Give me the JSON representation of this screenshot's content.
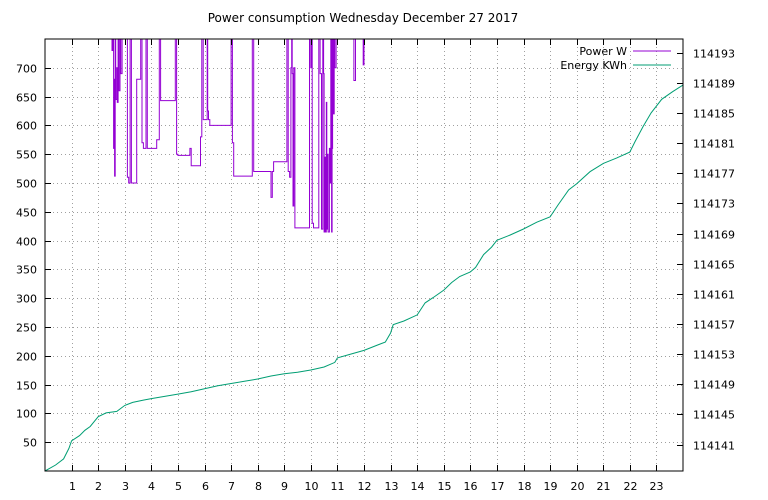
{
  "chart_data": {
    "type": "line",
    "title": "Power consumption Wednesday December 27 2017",
    "grid": true,
    "legend_placement": "top-right",
    "x": {
      "range": [
        0,
        24
      ],
      "ticks": [
        1,
        2,
        3,
        4,
        5,
        6,
        7,
        8,
        9,
        10,
        11,
        12,
        13,
        14,
        15,
        16,
        17,
        18,
        19,
        20,
        21,
        22,
        23
      ],
      "tick_labels": [
        "1",
        "2",
        "3",
        "4",
        "5",
        "6",
        "7",
        "8",
        "9",
        "10",
        "11",
        "12",
        "13",
        "14",
        "15",
        "16",
        "17",
        "18",
        "19",
        "20",
        "21",
        "22",
        "23"
      ]
    },
    "y_left": {
      "range": [
        0,
        750
      ],
      "ticks": [
        50,
        100,
        150,
        200,
        250,
        300,
        350,
        400,
        450,
        500,
        550,
        600,
        650,
        700
      ],
      "tick_labels": [
        "50",
        "100",
        "150",
        "200",
        "250",
        "300",
        "350",
        "400",
        "450",
        "500",
        "550",
        "600",
        "650",
        "700"
      ]
    },
    "y_right": {
      "range": [
        114137.5,
        114194.8
      ],
      "ticks": [
        114141,
        114145,
        114149,
        114153,
        114157,
        114161,
        114165,
        114169,
        114173,
        114177,
        114181,
        114185,
        114189,
        114193
      ],
      "tick_labels": [
        "114141",
        "114145",
        "114149",
        "114153",
        "114157",
        "114161",
        "114165",
        "114169",
        "114173",
        "114177",
        "114181",
        "114185",
        "114189",
        "114193"
      ]
    },
    "series": [
      {
        "name": "Power W",
        "axis": "left",
        "color": "#9400d3",
        "step": true,
        "points": [
          [
            2.5,
            750
          ],
          [
            2.52,
            730
          ],
          [
            2.55,
            750
          ],
          [
            2.58,
            560
          ],
          [
            2.6,
            680
          ],
          [
            2.62,
            512
          ],
          [
            2.64,
            750
          ],
          [
            2.66,
            645
          ],
          [
            2.7,
            700
          ],
          [
            2.72,
            640
          ],
          [
            2.75,
            750
          ],
          [
            2.78,
            660
          ],
          [
            2.82,
            750
          ],
          [
            2.85,
            690
          ],
          [
            2.9,
            750
          ],
          [
            3.05,
            750
          ],
          [
            3.1,
            510
          ],
          [
            3.15,
            500
          ],
          [
            3.2,
            750
          ],
          [
            3.25,
            500
          ],
          [
            3.45,
            680
          ],
          [
            3.6,
            750
          ],
          [
            3.65,
            570
          ],
          [
            3.7,
            560
          ],
          [
            3.8,
            750
          ],
          [
            3.85,
            560
          ],
          [
            4.2,
            575
          ],
          [
            4.3,
            750
          ],
          [
            4.35,
            643
          ],
          [
            4.9,
            750
          ],
          [
            4.95,
            550
          ],
          [
            5.0,
            548
          ],
          [
            5.45,
            560
          ],
          [
            5.5,
            530
          ],
          [
            5.85,
            580
          ],
          [
            5.9,
            750
          ],
          [
            5.95,
            610
          ],
          [
            6.1,
            750
          ],
          [
            6.12,
            625
          ],
          [
            6.15,
            610
          ],
          [
            6.2,
            600
          ],
          [
            7.0,
            750
          ],
          [
            7.05,
            570
          ],
          [
            7.1,
            512
          ],
          [
            7.8,
            750
          ],
          [
            7.85,
            520
          ],
          [
            8.5,
            475
          ],
          [
            8.55,
            520
          ],
          [
            8.6,
            537
          ],
          [
            9.1,
            750
          ],
          [
            9.15,
            520
          ],
          [
            9.2,
            510
          ],
          [
            9.25,
            700
          ],
          [
            9.28,
            750
          ],
          [
            9.3,
            690
          ],
          [
            9.33,
            460
          ],
          [
            9.36,
            700
          ],
          [
            9.4,
            422
          ],
          [
            9.95,
            750
          ],
          [
            10.0,
            700
          ],
          [
            10.02,
            750
          ],
          [
            10.05,
            430
          ],
          [
            10.1,
            422
          ],
          [
            10.3,
            750
          ],
          [
            10.35,
            690
          ],
          [
            10.4,
            420
          ],
          [
            10.45,
            750
          ],
          [
            10.48,
            690
          ],
          [
            10.5,
            415
          ],
          [
            10.52,
            545
          ],
          [
            10.55,
            415
          ],
          [
            10.58,
            640
          ],
          [
            10.6,
            420
          ],
          [
            10.62,
            550
          ],
          [
            10.65,
            415
          ],
          [
            10.7,
            560
          ],
          [
            10.72,
            500
          ],
          [
            10.75,
            750
          ],
          [
            10.78,
            415
          ],
          [
            10.8,
            560
          ],
          [
            10.82,
            750
          ],
          [
            10.85,
            620
          ],
          [
            10.88,
            750
          ],
          [
            10.9,
            700
          ],
          [
            10.95,
            750
          ],
          [
            11.6,
            750
          ],
          [
            11.62,
            678
          ],
          [
            11.68,
            750
          ],
          [
            11.95,
            750
          ],
          [
            11.97,
            705
          ],
          [
            12.0,
            750
          ]
        ]
      },
      {
        "name": "Energy KWh",
        "axis": "right",
        "color": "#009e73",
        "step": false,
        "points": [
          [
            0.0,
            114137.5
          ],
          [
            0.4,
            114138.3
          ],
          [
            0.7,
            114139.1
          ],
          [
            0.9,
            114140.5
          ],
          [
            1.0,
            114141.5
          ],
          [
            1.3,
            114142.2
          ],
          [
            1.5,
            114142.9
          ],
          [
            1.7,
            114143.4
          ],
          [
            2.0,
            114144.7
          ],
          [
            2.3,
            114145.2
          ],
          [
            2.7,
            114145.4
          ],
          [
            3.0,
            114146.2
          ],
          [
            3.3,
            114146.6
          ],
          [
            3.7,
            114146.9
          ],
          [
            4.0,
            114147.1
          ],
          [
            4.5,
            114147.4
          ],
          [
            5.0,
            114147.7
          ],
          [
            5.5,
            114148.0
          ],
          [
            6.0,
            114148.4
          ],
          [
            6.5,
            114148.8
          ],
          [
            7.0,
            114149.1
          ],
          [
            7.5,
            114149.4
          ],
          [
            8.0,
            114149.7
          ],
          [
            8.5,
            114150.1
          ],
          [
            9.0,
            114150.4
          ],
          [
            9.5,
            114150.6
          ],
          [
            10.0,
            114150.9
          ],
          [
            10.5,
            114151.3
          ],
          [
            10.9,
            114151.9
          ],
          [
            11.0,
            114152.5
          ],
          [
            11.5,
            114153.0
          ],
          [
            12.0,
            114153.5
          ],
          [
            12.5,
            114154.2
          ],
          [
            12.8,
            114154.6
          ],
          [
            13.0,
            114155.8
          ],
          [
            13.1,
            114156.9
          ],
          [
            13.5,
            114157.4
          ],
          [
            14.0,
            114158.2
          ],
          [
            14.3,
            114159.8
          ],
          [
            14.6,
            114160.5
          ],
          [
            15.0,
            114161.5
          ],
          [
            15.3,
            114162.5
          ],
          [
            15.6,
            114163.3
          ],
          [
            16.0,
            114163.9
          ],
          [
            16.2,
            114164.5
          ],
          [
            16.5,
            114166.2
          ],
          [
            16.8,
            114167.2
          ],
          [
            17.0,
            114168.1
          ],
          [
            17.5,
            114168.8
          ],
          [
            18.0,
            114169.6
          ],
          [
            18.5,
            114170.5
          ],
          [
            19.0,
            114171.2
          ],
          [
            19.3,
            114172.8
          ],
          [
            19.7,
            114174.8
          ],
          [
            20.0,
            114175.6
          ],
          [
            20.5,
            114177.2
          ],
          [
            21.0,
            114178.3
          ],
          [
            21.5,
            114179.0
          ],
          [
            22.0,
            114179.8
          ],
          [
            22.2,
            114181.2
          ],
          [
            22.5,
            114183.2
          ],
          [
            22.8,
            114185.0
          ],
          [
            23.2,
            114186.8
          ],
          [
            23.6,
            114187.8
          ],
          [
            24.0,
            114188.7
          ]
        ]
      }
    ]
  }
}
